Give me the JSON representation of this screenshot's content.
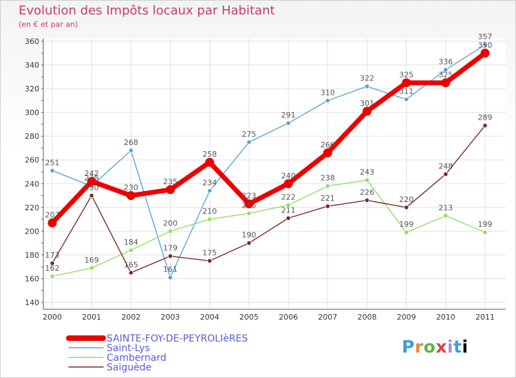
{
  "chart_data": {
    "type": "line",
    "title": "Evolution des Impôts locaux par Habitant",
    "subtitle": "(en € et par an)",
    "xlabel": "",
    "ylabel": "",
    "ylim": [
      140,
      360
    ],
    "yticks": [
      "140",
      "160",
      "180",
      "200",
      "220",
      "240",
      "260",
      "280",
      "300",
      "320",
      "340",
      "360"
    ],
    "categories": [
      "2000",
      "2001",
      "2002",
      "2003",
      "2004",
      "2005",
      "2006",
      "2007",
      "2008",
      "2009",
      "2010",
      "2011"
    ],
    "grid": true,
    "legend_position": "bottom-left",
    "series": [
      {
        "name": "SAINTE-FOY-DE-PEYROLIèRES",
        "color": "#ee0000",
        "values": [
          207,
          242,
          230,
          235,
          258,
          223,
          240,
          266,
          301,
          325,
          325,
          350
        ],
        "labels": [
          "207",
          "242",
          "230",
          "235",
          "258",
          "223",
          "240",
          "266",
          "301",
          "325",
          "325",
          "350"
        ]
      },
      {
        "name": "Saint-Lys",
        "color": "#5ba4d6",
        "values": [
          251,
          238,
          268,
          161,
          234,
          275,
          291,
          310,
          322,
          311,
          336,
          357
        ],
        "labels": [
          "251",
          "238",
          "268",
          "161",
          "234",
          "275",
          "291",
          "310",
          "322",
          "311",
          "336",
          "357"
        ]
      },
      {
        "name": "Cambernard",
        "color": "#95dc6a",
        "values": [
          162,
          169,
          184,
          200,
          210,
          215,
          222,
          238,
          243,
          199,
          213,
          199
        ],
        "labels": [
          "162",
          "169",
          "184",
          "200",
          "210",
          "215",
          "222",
          "238",
          "243",
          "199",
          "213",
          "199"
        ]
      },
      {
        "name": "Saiguède",
        "color": "#7a2a2a",
        "values": [
          173,
          230,
          165,
          179,
          175,
          190,
          211,
          221,
          226,
          220,
          248,
          289
        ],
        "labels": [
          "173",
          "230",
          "165",
          "179",
          "175",
          "190",
          "211",
          "221",
          "226",
          "220",
          "248",
          "289"
        ]
      }
    ]
  },
  "branding": {
    "logo_text": "Proxiti"
  }
}
